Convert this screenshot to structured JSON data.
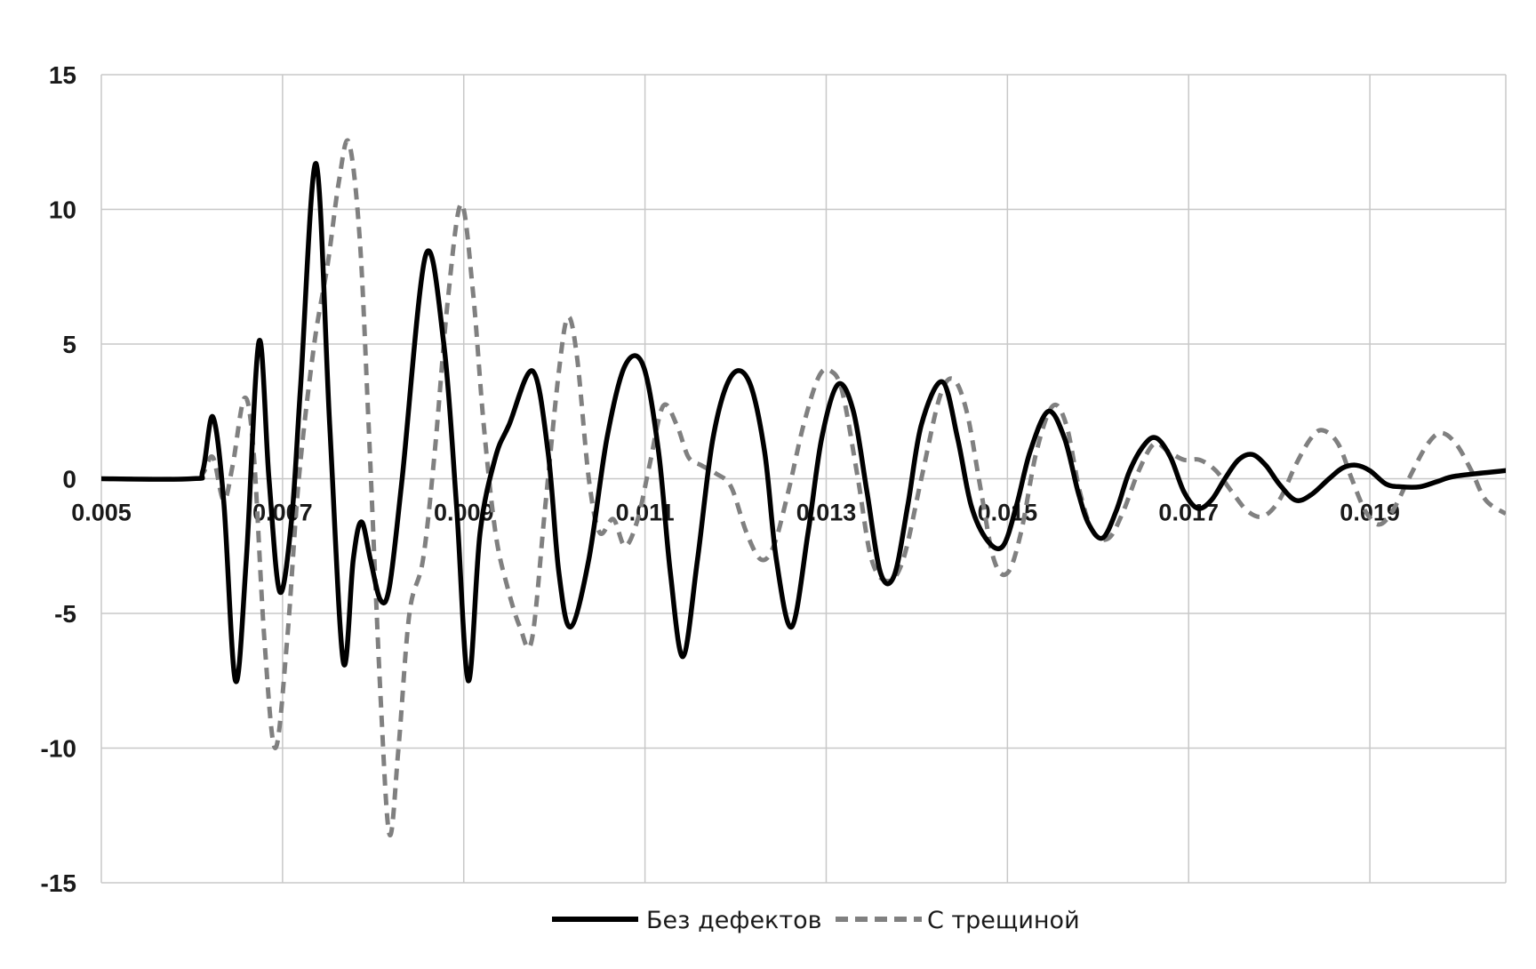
{
  "chart_data": {
    "type": "line",
    "title": "",
    "xlabel": "",
    "ylabel": "",
    "xlim": [
      0.005,
      0.0205
    ],
    "ylim": [
      -15,
      15
    ],
    "yticks": [
      15,
      10,
      5,
      0,
      -5,
      -10,
      -15
    ],
    "ytick_labels": [
      "15",
      "10",
      "5",
      "0",
      "-5",
      "-10",
      "-15"
    ],
    "xticks": [
      0.005,
      0.007,
      0.009,
      0.011,
      0.013,
      0.015,
      0.017,
      0.019
    ],
    "xtick_labels": [
      "0.005",
      "0.007",
      "0.009",
      "0.011",
      "0.013",
      "0.015",
      "0.017",
      "0.019"
    ],
    "grid": true,
    "legend": "bottom-center",
    "series": [
      {
        "name": "Без дефектов",
        "color": "#000000",
        "style": "solid",
        "points": [
          [
            0.005,
            0
          ],
          [
            0.006,
            0
          ],
          [
            0.00612,
            0.3
          ],
          [
            0.00623,
            2.3
          ],
          [
            0.00635,
            -0.8
          ],
          [
            0.00648,
            -7.5
          ],
          [
            0.0066,
            -3
          ],
          [
            0.00674,
            5.1
          ],
          [
            0.00685,
            0
          ],
          [
            0.00697,
            -4.2
          ],
          [
            0.0071,
            -1.5
          ],
          [
            0.0072,
            3.5
          ],
          [
            0.00737,
            11.7
          ],
          [
            0.00752,
            2
          ],
          [
            0.00767,
            -6.8
          ],
          [
            0.00778,
            -3
          ],
          [
            0.00787,
            -1.6
          ],
          [
            0.00797,
            -3
          ],
          [
            0.00808,
            -4.5
          ],
          [
            0.00818,
            -4
          ],
          [
            0.00832,
            0
          ],
          [
            0.00858,
            8.3
          ],
          [
            0.00878,
            5
          ],
          [
            0.00892,
            -1
          ],
          [
            0.00905,
            -7.5
          ],
          [
            0.00918,
            -2
          ],
          [
            0.00935,
            0.8
          ],
          [
            0.0095,
            2
          ],
          [
            0.00976,
            4
          ],
          [
            0.00993,
            1
          ],
          [
            0.01005,
            -3.5
          ],
          [
            0.01018,
            -5.5
          ],
          [
            0.01038,
            -3
          ],
          [
            0.01058,
            1.5
          ],
          [
            0.01078,
            4.2
          ],
          [
            0.01098,
            4.2
          ],
          [
            0.01115,
            1
          ],
          [
            0.01128,
            -3.5
          ],
          [
            0.01142,
            -6.6
          ],
          [
            0.01158,
            -3
          ],
          [
            0.01175,
            1.5
          ],
          [
            0.01195,
            3.8
          ],
          [
            0.01215,
            3.6
          ],
          [
            0.01232,
            1
          ],
          [
            0.01245,
            -3
          ],
          [
            0.01262,
            -5.5
          ],
          [
            0.0128,
            -2
          ],
          [
            0.01295,
            1.5
          ],
          [
            0.01313,
            3.5
          ],
          [
            0.0133,
            2.5
          ],
          [
            0.01345,
            -0.5
          ],
          [
            0.0136,
            -3.5
          ],
          [
            0.01375,
            -3.6
          ],
          [
            0.0139,
            -1
          ],
          [
            0.01405,
            2
          ],
          [
            0.01428,
            3.6
          ],
          [
            0.01445,
            1.5
          ],
          [
            0.0146,
            -1
          ],
          [
            0.01478,
            -2.3
          ],
          [
            0.01495,
            -2.5
          ],
          [
            0.0151,
            -1
          ],
          [
            0.01525,
            1
          ],
          [
            0.01545,
            2.5
          ],
          [
            0.01563,
            1.5
          ],
          [
            0.01578,
            -0.5
          ],
          [
            0.0159,
            -1.7
          ],
          [
            0.01605,
            -2.2
          ],
          [
            0.0162,
            -1.2
          ],
          [
            0.01635,
            0.3
          ],
          [
            0.01652,
            1.3
          ],
          [
            0.01665,
            1.5
          ],
          [
            0.0168,
            0.8
          ],
          [
            0.01695,
            -0.5
          ],
          [
            0.0171,
            -1.1
          ],
          [
            0.01725,
            -0.8
          ],
          [
            0.0174,
            0
          ],
          [
            0.01755,
            0.7
          ],
          [
            0.0177,
            0.9
          ],
          [
            0.01785,
            0.5
          ],
          [
            0.018,
            -0.2
          ],
          [
            0.01818,
            -0.8
          ],
          [
            0.01835,
            -0.6
          ],
          [
            0.01855,
            0
          ],
          [
            0.0187,
            0.4
          ],
          [
            0.01885,
            0.5
          ],
          [
            0.019,
            0.3
          ],
          [
            0.01918,
            -0.2
          ],
          [
            0.01935,
            -0.3
          ],
          [
            0.01955,
            -0.3
          ],
          [
            0.01975,
            -0.1
          ],
          [
            0.01995,
            0.1
          ],
          [
            0.0205,
            0.3
          ]
        ]
      },
      {
        "name": "С трещиной",
        "color": "#808080",
        "style": "dashed",
        "points": [
          [
            0.005,
            0
          ],
          [
            0.00598,
            0
          ],
          [
            0.00612,
            0.2
          ],
          [
            0.00623,
            0.8
          ],
          [
            0.00635,
            -0.8
          ],
          [
            0.00645,
            0.5
          ],
          [
            0.00658,
            3
          ],
          [
            0.00668,
            1
          ],
          [
            0.0068,
            -6
          ],
          [
            0.00692,
            -10
          ],
          [
            0.00705,
            -6
          ],
          [
            0.00718,
            0
          ],
          [
            0.00735,
            5
          ],
          [
            0.0075,
            8
          ],
          [
            0.00762,
            11
          ],
          [
            0.00773,
            12.5
          ],
          [
            0.00785,
            9
          ],
          [
            0.00795,
            2
          ],
          [
            0.00808,
            -8
          ],
          [
            0.00818,
            -13.2
          ],
          [
            0.00828,
            -10
          ],
          [
            0.0084,
            -5
          ],
          [
            0.00855,
            -3
          ],
          [
            0.00868,
            1
          ],
          [
            0.00882,
            6.5
          ],
          [
            0.00897,
            10.2
          ],
          [
            0.0091,
            7
          ],
          [
            0.00922,
            2
          ],
          [
            0.00935,
            -2
          ],
          [
            0.00948,
            -4
          ],
          [
            0.00962,
            -5.5
          ],
          [
            0.00975,
            -6
          ],
          [
            0.0099,
            -1
          ],
          [
            0.01005,
            4
          ],
          [
            0.01015,
            6
          ],
          [
            0.01025,
            4.5
          ],
          [
            0.01038,
            0
          ],
          [
            0.0105,
            -2
          ],
          [
            0.01065,
            -1.5
          ],
          [
            0.01078,
            -2.5
          ],
          [
            0.01092,
            -1.5
          ],
          [
            0.01105,
            0.5
          ],
          [
            0.0112,
            2.7
          ],
          [
            0.01135,
            2
          ],
          [
            0.01148,
            0.8
          ],
          [
            0.01162,
            0.5
          ],
          [
            0.01178,
            0.2
          ],
          [
            0.01195,
            -0.3
          ],
          [
            0.01212,
            -2
          ],
          [
            0.01228,
            -3
          ],
          [
            0.01242,
            -2.5
          ],
          [
            0.01258,
            -0.5
          ],
          [
            0.01275,
            2
          ],
          [
            0.01292,
            3.8
          ],
          [
            0.01305,
            4
          ],
          [
            0.01318,
            3.2
          ],
          [
            0.01335,
            0
          ],
          [
            0.0135,
            -3
          ],
          [
            0.01368,
            -3.8
          ],
          [
            0.01385,
            -3
          ],
          [
            0.01405,
            0
          ],
          [
            0.01425,
            3
          ],
          [
            0.0144,
            3.7
          ],
          [
            0.01455,
            2.5
          ],
          [
            0.0147,
            -0.3
          ],
          [
            0.01485,
            -3
          ],
          [
            0.015,
            -3.5
          ],
          [
            0.01515,
            -2
          ],
          [
            0.01532,
            1
          ],
          [
            0.0155,
            2.7
          ],
          [
            0.01565,
            2
          ],
          [
            0.0158,
            -0.5
          ],
          [
            0.01595,
            -2
          ],
          [
            0.01612,
            -2.2
          ],
          [
            0.01628,
            -1.2
          ],
          [
            0.01645,
            0.3
          ],
          [
            0.01662,
            1.3
          ],
          [
            0.01678,
            1
          ],
          [
            0.01695,
            0.7
          ],
          [
            0.01712,
            0.7
          ],
          [
            0.0173,
            0.3
          ],
          [
            0.01748,
            -0.5
          ],
          [
            0.01765,
            -1.2
          ],
          [
            0.01782,
            -1.4
          ],
          [
            0.018,
            -0.8
          ],
          [
            0.01818,
            0.5
          ],
          [
            0.01835,
            1.5
          ],
          [
            0.01848,
            1.8
          ],
          [
            0.01865,
            1.3
          ],
          [
            0.0188,
            0
          ],
          [
            0.01895,
            -1.2
          ],
          [
            0.0191,
            -1.7
          ],
          [
            0.01925,
            -1.2
          ],
          [
            0.01943,
            0
          ],
          [
            0.01962,
            1.2
          ],
          [
            0.01978,
            1.7
          ],
          [
            0.01995,
            1.3
          ],
          [
            0.02012,
            0.3
          ],
          [
            0.02028,
            -0.8
          ],
          [
            0.0205,
            -1.3
          ]
        ]
      }
    ]
  }
}
